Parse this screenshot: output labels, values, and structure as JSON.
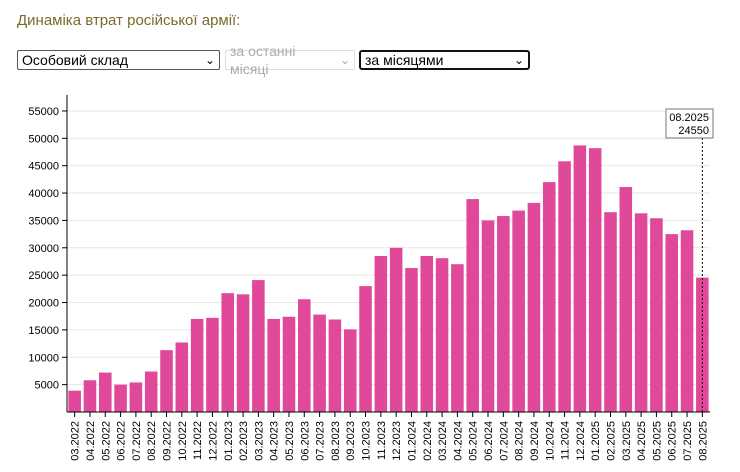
{
  "header": {
    "title": "Динаміка втрат російської армії:"
  },
  "controls": {
    "category_select": {
      "value": "Особовий склад"
    },
    "period_select": {
      "value": "за останні місяці"
    },
    "grouping_select": {
      "value": "за місяцями"
    }
  },
  "tooltip": {
    "label": "08.2025",
    "value": "24550"
  },
  "colors": {
    "bar": "#e0489a",
    "grid": "#e6e6e6",
    "axis": "#000000"
  },
  "chart_data": {
    "type": "bar",
    "title": "Динаміка втрат російської армії:",
    "xlabel": "",
    "ylabel": "",
    "ylim": [
      0,
      57000
    ],
    "yticks": [
      5000,
      10000,
      15000,
      20000,
      25000,
      30000,
      35000,
      40000,
      45000,
      50000,
      55000
    ],
    "grid": true,
    "categories": [
      "03.2022",
      "04.2022",
      "05.2022",
      "06.2022",
      "07.2022",
      "08.2022",
      "09.2022",
      "10.2022",
      "11.2022",
      "12.2022",
      "01.2023",
      "02.2023",
      "03.2023",
      "04.2023",
      "05.2023",
      "06.2023",
      "07.2023",
      "08.2023",
      "09.2023",
      "10.2023",
      "11.2023",
      "12.2023",
      "01.2024",
      "02.2024",
      "03.2024",
      "04.2024",
      "05.2024",
      "06.2024",
      "07.2024",
      "08.2024",
      "09.2024",
      "10.2024",
      "11.2024",
      "12.2024",
      "01.2025",
      "02.2025",
      "03.2025",
      "04.2025",
      "05.2025",
      "06.2025",
      "07.2025",
      "08.2025"
    ],
    "values": [
      3900,
      5800,
      7200,
      5000,
      5400,
      7400,
      11300,
      12700,
      17000,
      17200,
      21700,
      21500,
      24100,
      17000,
      17400,
      20600,
      17800,
      16900,
      15100,
      23000,
      28500,
      30000,
      26300,
      28500,
      28100,
      27000,
      38900,
      35000,
      35800,
      36800,
      38200,
      42000,
      45800,
      48700,
      48200,
      36500,
      41100,
      36300,
      35400,
      32500,
      33200,
      24550
    ]
  }
}
